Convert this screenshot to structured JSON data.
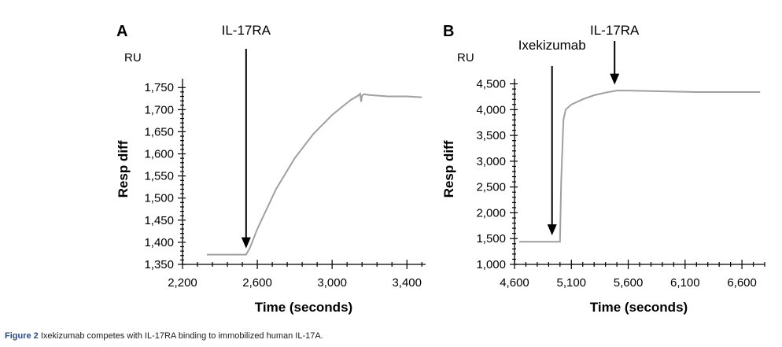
{
  "chart_data": [
    {
      "panel": "A",
      "type": "line",
      "unit": "RU",
      "xlabel": "Time (seconds)",
      "ylabel": "Resp diff",
      "xlim": [
        2200,
        3500
      ],
      "ylim": [
        1350,
        1770
      ],
      "x_ticks": [
        2200,
        2600,
        3000,
        3400
      ],
      "x_tick_labels": [
        "2,200",
        "2,600",
        "3,000",
        "3,400"
      ],
      "y_ticks": [
        1350,
        1400,
        1450,
        1500,
        1550,
        1600,
        1650,
        1700,
        1750
      ],
      "y_tick_labels": [
        "1,350",
        "1,400",
        "1,450",
        "1,500",
        "1,550",
        "1,600",
        "1,650",
        "1,700",
        "1,750"
      ],
      "series_color": "#a0a0a0",
      "series": [
        {
          "x": [
            2330,
            2400,
            2500,
            2540,
            2560,
            2600,
            2700,
            2800,
            2900,
            3000,
            3050,
            3100,
            3140,
            3150,
            3155,
            3160,
            3170,
            3200,
            3300,
            3400,
            3480
          ],
          "y": [
            1372,
            1372,
            1372,
            1372,
            1387,
            1430,
            1520,
            1590,
            1645,
            1688,
            1705,
            1722,
            1732,
            1736,
            1718,
            1732,
            1735,
            1733,
            1730,
            1730,
            1728
          ]
        }
      ],
      "annotations": [
        {
          "text": "IL-17RA",
          "x": 2540
        }
      ]
    },
    {
      "panel": "B",
      "type": "line",
      "unit": "RU",
      "xlabel": "Time (seconds)",
      "ylabel": "Resp diff",
      "xlim": [
        4600,
        6800
      ],
      "ylim": [
        1000,
        4600
      ],
      "x_ticks": [
        4600,
        5100,
        5600,
        6100,
        6600
      ],
      "x_tick_labels": [
        "4,600",
        "5,100",
        "5,600",
        "6,100",
        "6,600"
      ],
      "y_ticks": [
        1000,
        1500,
        2000,
        2500,
        3000,
        3500,
        4000,
        4500
      ],
      "y_tick_labels": [
        "1,000",
        "1,500",
        "2,000",
        "2,500",
        "3,000",
        "3,500",
        "4,000",
        "4,500"
      ],
      "series_color": "#a0a0a0",
      "series": [
        {
          "x": [
            4640,
            4800,
            4990,
            5000,
            5010,
            5030,
            5050,
            5100,
            5200,
            5300,
            5400,
            5500,
            5600,
            5800,
            6000,
            6200,
            6400,
            6760
          ],
          "y": [
            1440,
            1440,
            1440,
            1440,
            2600,
            3800,
            4000,
            4100,
            4200,
            4280,
            4330,
            4370,
            4370,
            4360,
            4350,
            4340,
            4340,
            4340
          ]
        }
      ],
      "annotations": [
        {
          "text": "Ixekizumab",
          "x": 4930
        },
        {
          "text": "IL-17RA",
          "x": 5480
        }
      ]
    }
  ],
  "caption": {
    "label": "Figure 2",
    "text": "Ixekizumab competes with IL-17RA binding to immobilized human IL-17A."
  }
}
